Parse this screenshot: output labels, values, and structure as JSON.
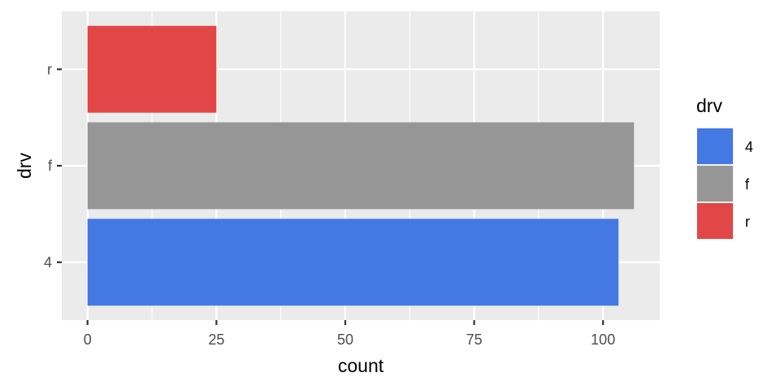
{
  "chart_data": {
    "type": "bar",
    "orientation": "horizontal",
    "categories": [
      "4",
      "f",
      "r"
    ],
    "values": [
      103,
      106,
      25
    ],
    "colors": [
      "#4479E4",
      "#969696",
      "#E34646"
    ],
    "xlabel": "count",
    "ylabel": "drv",
    "xlim": [
      -5,
      111
    ],
    "xticks": [
      0,
      25,
      50,
      75,
      100
    ],
    "xtick_labels": [
      "0",
      "25",
      "50",
      "75",
      "100"
    ],
    "grid": true,
    "panel_background": "#EBEBEB",
    "grid_color": "#FFFFFF",
    "legend": {
      "title": "drv",
      "placement": "right",
      "entries": [
        {
          "label": "4",
          "color": "#4479E4"
        },
        {
          "label": "f",
          "color": "#969696"
        },
        {
          "label": "r",
          "color": "#E34646"
        }
      ]
    }
  }
}
